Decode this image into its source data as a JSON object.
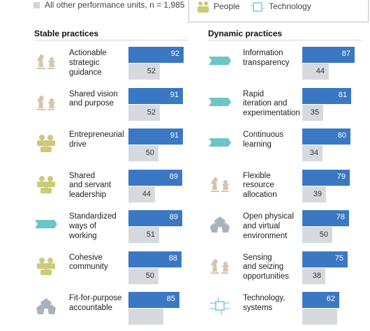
{
  "legend": {
    "other_units": "All other performance units, n = 1,985",
    "people": "People",
    "technology": "Technology"
  },
  "colors": {
    "top_bar": "#3a78c4",
    "other_bar": "#d6dadf",
    "icon_olive": "#c9cc78",
    "icon_tan": "#d8c4ae",
    "icon_teal": "#6cc4c4",
    "icon_grey": "#a9b3bc"
  },
  "chart_data": [
    {
      "type": "bar",
      "title": "Stable practices",
      "series": [
        {
          "name": "",
          "values": [
            92,
            91,
            91,
            89,
            89,
            88,
            85
          ]
        },
        {
          "name": "All other performance units, n = 1,985",
          "values": [
            52,
            52,
            50,
            44,
            51,
            50,
            null
          ]
        }
      ],
      "categories": [
        "Actionable strategic guidance",
        "Shared vision and purpose",
        "Entrepreneurial drive",
        "Shared and servant leadership",
        "Standardized ways of working",
        "Cohesive community",
        "Fit-for-purpose accountable"
      ],
      "label_lines": [
        [
          "Actionable",
          "strategic",
          "guidance"
        ],
        [
          "Shared vision",
          "and purpose"
        ],
        [
          "Entrepreneurial",
          "drive"
        ],
        [
          "Shared",
          "and servant",
          "leadership"
        ],
        [
          "Standardized",
          "ways of",
          "working"
        ],
        [
          "Cohesive",
          "community"
        ],
        [
          "Fit-for-purpose",
          "accountable"
        ]
      ],
      "icons": [
        "strategy-icon",
        "strategy-icon",
        "people-icon",
        "people-icon",
        "process-icon",
        "people-icon",
        "structure-icon"
      ],
      "xlim": [
        0,
        100
      ]
    },
    {
      "type": "bar",
      "title": "Dynamic practices",
      "series": [
        {
          "name": "",
          "values": [
            87,
            81,
            80,
            79,
            78,
            75,
            62
          ]
        },
        {
          "name": "All other performance units, n = 1,985",
          "values": [
            44,
            35,
            34,
            39,
            50,
            38,
            null
          ]
        }
      ],
      "categories": [
        "Information transparency",
        "Rapid iteration and experimentation",
        "Continuous learning",
        "Flexible resource allocation",
        "Open physical and virtual environment",
        "Sensing and seizing opportunities",
        "Technology, systems"
      ],
      "label_lines": [
        [
          "Information",
          "transparency"
        ],
        [
          "Rapid",
          "iteration and",
          "experimentation"
        ],
        [
          "Continuous",
          "learning"
        ],
        [
          "Flexible",
          "resource",
          "allocation"
        ],
        [
          "Open physical",
          "and virtual",
          "environment"
        ],
        [
          "Sensing",
          "and seizing",
          "opportunities"
        ],
        [
          "Technology,",
          "systems"
        ]
      ],
      "icons": [
        "process-icon",
        "process-icon",
        "process-icon",
        "strategy-icon",
        "structure-icon",
        "strategy-icon",
        "technology-icon"
      ],
      "xlim": [
        0,
        100
      ]
    }
  ]
}
